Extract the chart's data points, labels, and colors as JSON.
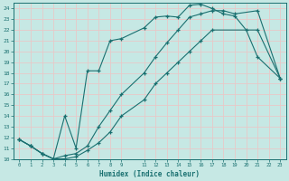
{
  "xlabel": "Humidex (Indice chaleur)",
  "xlim": [
    -0.5,
    23.5
  ],
  "ylim": [
    10,
    24.5
  ],
  "background_color": "#c6e8e4",
  "grid_color": "#e8c8c8",
  "line_color": "#1a7070",
  "curve1_x": [
    0,
    1,
    2,
    3,
    4,
    5,
    6,
    7,
    8,
    9,
    11,
    12,
    13,
    14,
    15,
    16,
    17,
    18,
    19,
    21,
    23
  ],
  "curve1_y": [
    11.8,
    11.2,
    10.5,
    10.0,
    10.3,
    10.5,
    11.2,
    13.0,
    14.5,
    16.0,
    18.0,
    19.5,
    20.8,
    22.0,
    23.2,
    23.5,
    23.8,
    23.8,
    23.5,
    23.8,
    17.5
  ],
  "curve2_x": [
    0,
    1,
    2,
    3,
    4,
    5,
    6,
    7,
    8,
    9,
    11,
    12,
    13,
    14,
    15,
    16,
    17,
    21,
    23
  ],
  "curve2_y": [
    11.8,
    11.2,
    10.5,
    10.0,
    10.0,
    10.2,
    10.8,
    11.5,
    12.5,
    14.0,
    15.5,
    17.0,
    18.0,
    19.0,
    20.0,
    21.0,
    22.0,
    22.0,
    17.5
  ],
  "curve3_x": [
    0,
    1,
    2,
    3,
    4,
    5,
    6,
    7,
    8,
    9,
    11,
    12,
    13,
    14,
    15,
    16,
    17,
    18,
    19,
    20,
    21,
    23
  ],
  "curve3_y": [
    11.8,
    11.2,
    10.5,
    10.0,
    14.0,
    11.0,
    18.2,
    18.2,
    21.0,
    21.2,
    22.2,
    23.2,
    23.3,
    23.2,
    24.3,
    24.4,
    24.0,
    23.5,
    23.3,
    22.0,
    19.5,
    17.5
  ],
  "xticks": [
    0,
    1,
    2,
    3,
    4,
    5,
    6,
    7,
    8,
    9,
    11,
    12,
    13,
    14,
    15,
    16,
    17,
    18,
    19,
    20,
    21,
    22,
    23
  ],
  "xtick_labels": [
    "0",
    "1",
    "2",
    "3",
    "4",
    "5",
    "6",
    "7",
    "8",
    "9",
    "11",
    "12",
    "13",
    "14",
    "15",
    "16",
    "17",
    "18",
    "19",
    "20",
    "21",
    "22",
    "23"
  ],
  "yticks": [
    10,
    11,
    12,
    13,
    14,
    15,
    16,
    17,
    18,
    19,
    20,
    21,
    22,
    23,
    24
  ],
  "ytick_labels": [
    "10",
    "11",
    "12",
    "13",
    "14",
    "15",
    "16",
    "17",
    "18",
    "19",
    "20",
    "21",
    "22",
    "23",
    "24"
  ]
}
